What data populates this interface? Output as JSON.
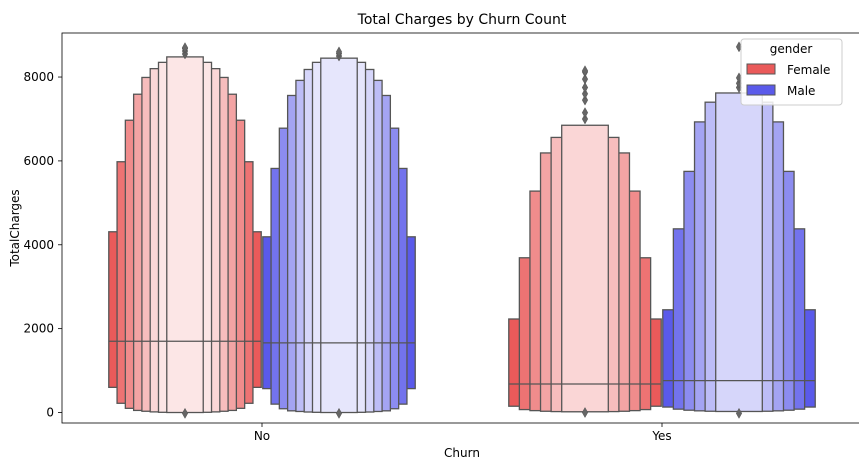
{
  "chart_data": {
    "type": "boxen",
    "title": "Total Charges by Churn Count",
    "xlabel": "Churn",
    "ylabel": "TotalCharges",
    "categories": [
      "No",
      "Yes"
    ],
    "ylim": [
      -250,
      9050
    ],
    "yticks": [
      0,
      2000,
      4000,
      6000,
      8000
    ],
    "legend": {
      "title": "gender",
      "placement": "top-right",
      "entries": [
        {
          "name": "Female",
          "color": "#ea5a5a"
        },
        {
          "name": "Male",
          "color": "#5a5aea"
        }
      ]
    },
    "series": [
      {
        "name": "Female",
        "color": "#ea5a5a",
        "groups": [
          {
            "category": "No",
            "median": 1700,
            "boxes": [
              [
                600,
                4310
              ],
              [
                220,
                5980
              ],
              [
                100,
                6970
              ],
              [
                50,
                7590
              ],
              [
                30,
                7990
              ],
              [
                15,
                8200
              ],
              [
                5,
                8350
              ],
              [
                0,
                8480
              ]
            ],
            "outliers": [
              8550,
              8620,
              8680,
              8700,
              -20
            ]
          },
          {
            "category": "Yes",
            "median": 680,
            "boxes": [
              [
                150,
                2230
              ],
              [
                70,
                3690
              ],
              [
                45,
                5280
              ],
              [
                30,
                6190
              ],
              [
                22,
                6560
              ],
              [
                18,
                6850
              ]
            ],
            "outliers": [
              7000,
              7150,
              7450,
              7600,
              7750,
              7950,
              8120,
              8150,
              0
            ]
          }
        ]
      },
      {
        "name": "Male",
        "color": "#5a5aea",
        "groups": [
          {
            "category": "No",
            "median": 1660,
            "boxes": [
              [
                570,
                4190
              ],
              [
                200,
                5820
              ],
              [
                90,
                6780
              ],
              [
                40,
                7560
              ],
              [
                25,
                7920
              ],
              [
                12,
                8180
              ],
              [
                5,
                8350
              ],
              [
                0,
                8450
              ]
            ],
            "outliers": [
              8500,
              8560,
              8600,
              -20
            ]
          },
          {
            "category": "Yes",
            "median": 760,
            "boxes": [
              [
                130,
                2450
              ],
              [
                80,
                4380
              ],
              [
                55,
                5750
              ],
              [
                40,
                6930
              ],
              [
                30,
                7400
              ],
              [
                25,
                7620
              ]
            ],
            "outliers": [
              7750,
              7850,
              7980,
              8720,
              -20
            ]
          }
        ]
      }
    ]
  }
}
